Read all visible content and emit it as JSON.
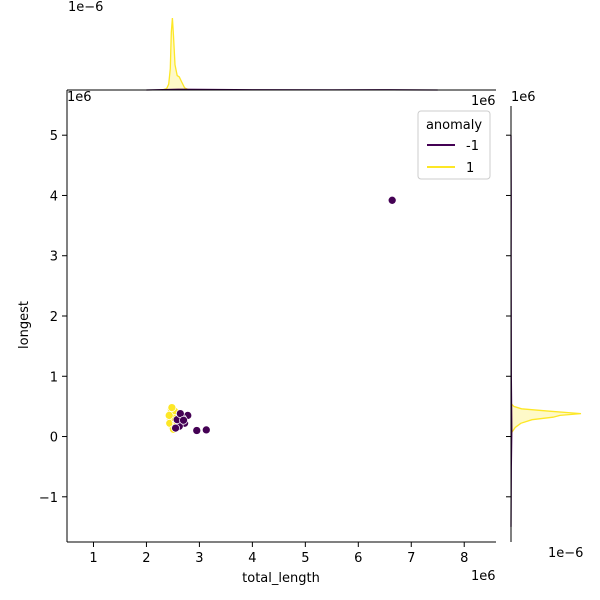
{
  "chart_data": {
    "type": "scatter",
    "kind": "jointplot",
    "xlabel": "total_length",
    "ylabel": "longest",
    "x_offset_label": "1e6",
    "y_offset_label": "1e6",
    "top_marginal_offset_label": "1e−6",
    "right_marginal_offset_label": "1e−6",
    "xlim": [
      0.5,
      8.6
    ],
    "ylim": [
      -1.75,
      5.75
    ],
    "x_ticks": [
      1,
      2,
      3,
      4,
      5,
      6,
      7,
      8
    ],
    "y_ticks": [
      -1,
      0,
      1,
      2,
      3,
      4,
      5
    ],
    "grid": false,
    "legend": {
      "title": "anomaly",
      "placement": "top-right",
      "entries": [
        {
          "label": "-1",
          "color": "#440154"
        },
        {
          "label": "1",
          "color": "#fde725"
        }
      ]
    },
    "series": [
      {
        "name": "-1",
        "color": "#440154",
        "points": [
          {
            "x": 6.64,
            "y": 3.92
          },
          {
            "x": 2.95,
            "y": 0.1
          },
          {
            "x": 3.13,
            "y": 0.11
          },
          {
            "x": 2.78,
            "y": 0.35
          },
          {
            "x": 2.72,
            "y": 0.22
          },
          {
            "x": 2.68,
            "y": 0.3
          },
          {
            "x": 2.62,
            "y": 0.17
          },
          {
            "x": 2.58,
            "y": 0.28
          },
          {
            "x": 2.55,
            "y": 0.14
          },
          {
            "x": 2.64,
            "y": 0.38
          },
          {
            "x": 2.7,
            "y": 0.27
          }
        ]
      },
      {
        "name": "1",
        "color": "#fde725",
        "points": [
          {
            "x": 2.45,
            "y": 0.3
          },
          {
            "x": 2.48,
            "y": 0.25
          },
          {
            "x": 2.5,
            "y": 0.35
          },
          {
            "x": 2.52,
            "y": 0.2
          },
          {
            "x": 2.46,
            "y": 0.4
          },
          {
            "x": 2.55,
            "y": 0.32
          },
          {
            "x": 2.58,
            "y": 0.38
          },
          {
            "x": 2.6,
            "y": 0.28
          },
          {
            "x": 2.49,
            "y": 0.15
          },
          {
            "x": 2.47,
            "y": 0.45
          },
          {
            "x": 2.53,
            "y": 0.42
          },
          {
            "x": 2.62,
            "y": 0.33
          },
          {
            "x": 2.44,
            "y": 0.22
          },
          {
            "x": 2.51,
            "y": 0.12
          },
          {
            "x": 2.56,
            "y": 0.24
          },
          {
            "x": 2.65,
            "y": 0.36
          },
          {
            "x": 2.48,
            "y": 0.48
          },
          {
            "x": 2.54,
            "y": 0.3
          },
          {
            "x": 2.43,
            "y": 0.35
          },
          {
            "x": 2.57,
            "y": 0.18
          }
        ]
      }
    ],
    "marginals": {
      "top": {
        "series": [
          {
            "name": "1",
            "color": "#fde725",
            "density": [
              {
                "x": 2.3,
                "y": 0.0
              },
              {
                "x": 2.38,
                "y": 0.02
              },
              {
                "x": 2.42,
                "y": 0.08
              },
              {
                "x": 2.45,
                "y": 0.3
              },
              {
                "x": 2.47,
                "y": 0.8
              },
              {
                "x": 2.49,
                "y": 1.0
              },
              {
                "x": 2.51,
                "y": 0.75
              },
              {
                "x": 2.54,
                "y": 0.35
              },
              {
                "x": 2.58,
                "y": 0.2
              },
              {
                "x": 2.62,
                "y": 0.18
              },
              {
                "x": 2.66,
                "y": 0.12
              },
              {
                "x": 2.72,
                "y": 0.03
              },
              {
                "x": 2.8,
                "y": 0.0
              }
            ]
          },
          {
            "name": "-1",
            "color": "#440154",
            "density": [
              {
                "x": 2.0,
                "y": 0.0
              },
              {
                "x": 2.6,
                "y": 0.01
              },
              {
                "x": 3.0,
                "y": 0.008
              },
              {
                "x": 4.0,
                "y": 0.003
              },
              {
                "x": 5.5,
                "y": 0.002
              },
              {
                "x": 6.6,
                "y": 0.003
              },
              {
                "x": 7.5,
                "y": 0.0
              }
            ]
          }
        ]
      },
      "right": {
        "series": [
          {
            "name": "1",
            "color": "#fde725",
            "density": [
              {
                "y": 0.05,
                "x": 0.0
              },
              {
                "y": 0.15,
                "x": 0.06
              },
              {
                "y": 0.22,
                "x": 0.14
              },
              {
                "y": 0.28,
                "x": 0.3
              },
              {
                "y": 0.32,
                "x": 0.6
              },
              {
                "y": 0.35,
                "x": 0.7
              },
              {
                "y": 0.38,
                "x": 1.0
              },
              {
                "y": 0.42,
                "x": 0.55
              },
              {
                "y": 0.46,
                "x": 0.15
              },
              {
                "y": 0.5,
                "x": 0.04
              },
              {
                "y": 0.55,
                "x": 0.0
              }
            ]
          },
          {
            "name": "-1",
            "color": "#440154",
            "density": [
              {
                "y": -1.5,
                "x": 0.0
              },
              {
                "y": -0.5,
                "x": 0.004
              },
              {
                "y": 0.1,
                "x": 0.012
              },
              {
                "y": 0.3,
                "x": 0.01
              },
              {
                "y": 1.0,
                "x": 0.004
              },
              {
                "y": 3.0,
                "x": 0.002
              },
              {
                "y": 3.9,
                "x": 0.003
              },
              {
                "y": 5.0,
                "x": 0.0
              }
            ]
          }
        ]
      }
    }
  }
}
